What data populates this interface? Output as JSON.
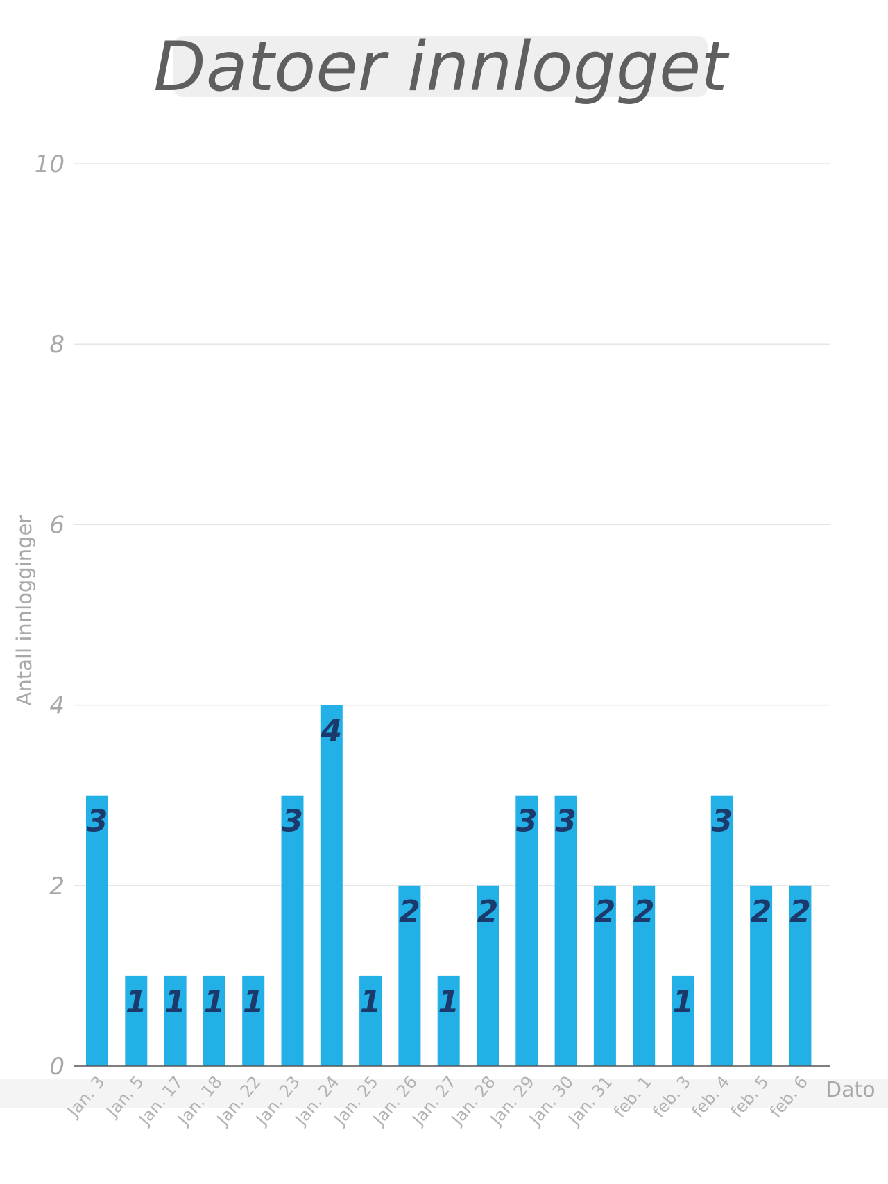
{
  "chart_data": {
    "type": "bar",
    "title": "Datoer innlogget",
    "xlabel": "Dato",
    "ylabel": "Antall innlogginger",
    "ylim": [
      0,
      10
    ],
    "yticks": [
      0,
      2,
      4,
      6,
      8,
      10
    ],
    "grid": true,
    "categories": [
      "Jan. 3",
      "Jan. 5",
      "Jan. 17",
      "Jan. 18",
      "Jan. 22",
      "Jan. 23",
      "Jan. 24",
      "Jan. 25",
      "Jan. 26",
      "Jan. 27",
      "Jan. 28",
      "Jan. 29",
      "Jan. 30",
      "Jan. 31",
      "feb. 1",
      "feb. 3",
      "feb. 4",
      "feb. 5",
      "feb. 6"
    ],
    "values": [
      3,
      1,
      1,
      1,
      1,
      3,
      4,
      1,
      2,
      1,
      2,
      3,
      3,
      2,
      2,
      1,
      3,
      2,
      2
    ],
    "colors": {
      "bar": "#23b0e6",
      "bar_label": "#1b3a6b",
      "title": "#5f5f5f",
      "axis_text": "#a8a8a8"
    }
  }
}
